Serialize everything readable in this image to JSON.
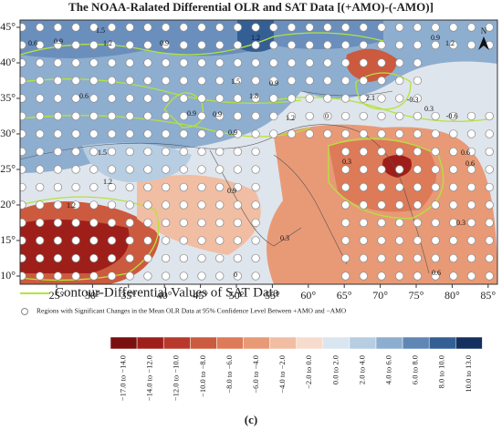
{
  "title": "The NOAA-Ralated Differential OLR and SAT Data [(+AMO)-(-AMO)]",
  "lon_ticks": [
    "25°",
    "30°",
    "35°",
    "40°",
    "45°",
    "50°",
    "55°",
    "60°",
    "65°",
    "70°",
    "75°",
    "80°",
    "85°"
  ],
  "lat_ticks": [
    "45°",
    "40°",
    "35°",
    "30°",
    "25°",
    "20°",
    "15°",
    "10°"
  ],
  "north": "N",
  "contour_labels": [
    "0.6",
    "0.9",
    "1.5",
    "1.2",
    "0.9",
    "1.2",
    "0.9",
    "1.5",
    "1.8",
    "0.6",
    "0.9",
    "0.9",
    "1.2",
    "0",
    "0.3",
    "2.1",
    "-0.3",
    "-0.6",
    "0.3",
    "1.5",
    "1.2",
    "1.2",
    "0.9",
    "0.3",
    "0.6",
    "0.6",
    "0.3",
    "0.6",
    "0",
    "0.9",
    "1.2",
    "0.9"
  ],
  "contour_legend": "Contour-Differential Values of SAT Data",
  "dots_legend": "Regions with Significant Changes in the Mean OLR Data at 95% Confidence Level Between +AMO and −AMO",
  "colorbar": {
    "labels": [
      "−17.0 to −14.0",
      "−14.0 to −12.0",
      "−12.0 to −10.0",
      "−10.0 to −8.0",
      "−8.0 to −6.0",
      "−6.0 to −4.0",
      "−4.0 to −2.0",
      "−2.0 to 0.0",
      "0.0 to 2.0",
      "2.0 to 4.0",
      "4.0 to 6.0",
      "6.0 to 8.0",
      "8.0 to 10.0",
      "10.0 to 13.0"
    ],
    "colors": [
      "#7a0f0f",
      "#9e1f1a",
      "#b8392b",
      "#cc5a3f",
      "#dd7a58",
      "#e89a77",
      "#f1bea3",
      "#f7dccd",
      "#d9e6f0",
      "#b7cde2",
      "#8eaed0",
      "#5f86b5",
      "#345f94",
      "#14305f"
    ]
  },
  "panel": "(c)"
}
